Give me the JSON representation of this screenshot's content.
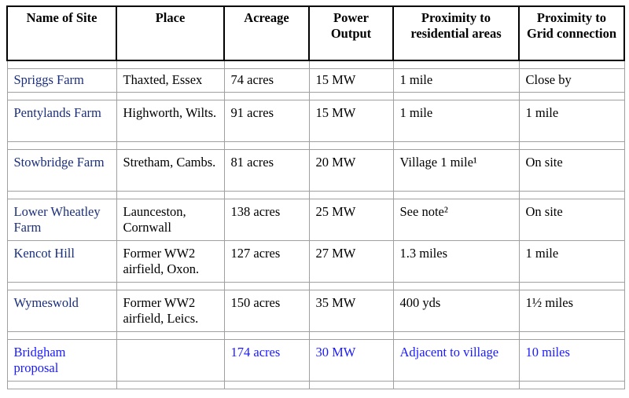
{
  "headers": [
    "Name of Site",
    "Place",
    "Acreage",
    "Power Output",
    "Proximity to residential areas",
    "Proximity to Grid connection"
  ],
  "rows": [
    {
      "site": "Spriggs Farm",
      "place": "Thaxted, Essex",
      "acreage": "74 acres",
      "power": "15 MW",
      "residential": "1 mile",
      "grid": "Close by"
    },
    {
      "site": "Pentylands Farm",
      "place": "Highworth, Wilts.",
      "acreage": "91 acres",
      "power": "15 MW",
      "residential": "1 mile",
      "grid": "1 mile"
    },
    {
      "site": "Stowbridge Farm",
      "place": "Stretham, Cambs.",
      "acreage": "81 acres",
      "power": "20 MW",
      "residential": "Village 1 mile¹",
      "grid": "On site"
    },
    {
      "site": "Lower Wheatley Farm",
      "place": "Launceston, Cornwall",
      "acreage": "138 acres",
      "power": "25 MW",
      "residential": "See note²",
      "grid": "On site"
    },
    {
      "site": "Kencot Hill",
      "place": "Former WW2 airfield, Oxon.",
      "acreage": "127 acres",
      "power": "27 MW",
      "residential": "1.3 miles",
      "grid": "1 mile"
    },
    {
      "site": "Wymeswold",
      "place": "Former WW2 airfield, Leics.",
      "acreage": "150 acres",
      "power": "35 MW",
      "residential": "400 yds",
      "grid": "1½ miles"
    },
    {
      "site": "Bridgham proposal",
      "place": "",
      "acreage": "174 acres",
      "power": "30 MW",
      "residential": "Adjacent to village",
      "grid": "10 miles"
    }
  ]
}
